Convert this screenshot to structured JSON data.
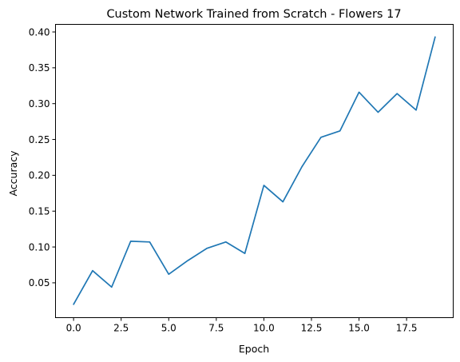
{
  "chart_data": {
    "type": "line",
    "title": "Custom Network Trained from Scratch - Flowers 17",
    "xlabel": "Epoch",
    "ylabel": "Accuracy",
    "xlim": [
      -0.95,
      19.95
    ],
    "ylim": [
      0.0014,
      0.4106
    ],
    "grid": false,
    "x_ticks": [
      0.0,
      2.5,
      5.0,
      7.5,
      10.0,
      12.5,
      15.0,
      17.5
    ],
    "x_tick_labels": [
      "0.0",
      "2.5",
      "5.0",
      "7.5",
      "10.0",
      "12.5",
      "15.0",
      "17.5"
    ],
    "y_ticks": [
      0.05,
      0.1,
      0.15,
      0.2,
      0.25,
      0.3,
      0.35,
      0.4
    ],
    "y_tick_labels": [
      "0.05",
      "0.10",
      "0.15",
      "0.20",
      "0.25",
      "0.30",
      "0.35",
      "0.40"
    ],
    "series": [
      {
        "color": "#1f77b4",
        "x": [
          0,
          1,
          2,
          3,
          4,
          5,
          6,
          7,
          8,
          9,
          10,
          11,
          12,
          13,
          14,
          15,
          16,
          17,
          18,
          19
        ],
        "values": [
          0.02,
          0.067,
          0.044,
          0.108,
          0.107,
          0.062,
          0.081,
          0.098,
          0.107,
          0.091,
          0.186,
          0.163,
          0.212,
          0.253,
          0.262,
          0.316,
          0.288,
          0.314,
          0.291,
          0.393
        ]
      }
    ]
  }
}
